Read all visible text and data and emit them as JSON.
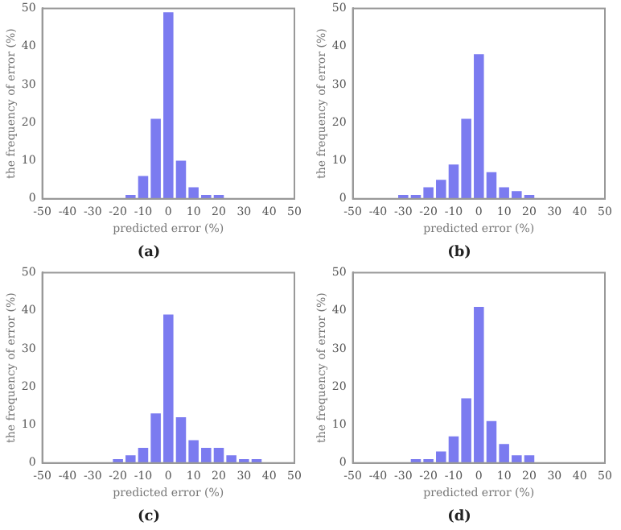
{
  "chart_data": [
    {
      "type": "histogram",
      "title": "(a)",
      "xlabel": "predicted error (%)",
      "ylabel": "the frequency of error (%)",
      "bins": [
        -17.5,
        -12.5,
        -7.5,
        -2.5,
        2.5,
        7.5,
        12.5,
        17.5,
        22.5
      ],
      "values": [
        1,
        6,
        21,
        49,
        10,
        3,
        1,
        1
      ],
      "color": "#7b7bf0",
      "xlim": [
        -50,
        50
      ],
      "xticks": [
        -50,
        -40,
        -30,
        -20,
        -10,
        0,
        10,
        20,
        30,
        40,
        50
      ],
      "ylim": [
        0,
        50
      ],
      "yticks": [
        0,
        10,
        20,
        30,
        40,
        50
      ],
      "grid": false
    },
    {
      "type": "histogram",
      "title": "(b)",
      "xlabel": "predicted error (%)",
      "ylabel": "the frequency of error (%)",
      "bins": [
        -32.5,
        -27.5,
        -22.5,
        -17.5,
        -12.5,
        -7.5,
        -2.5,
        2.5,
        7.5,
        12.5,
        17.5,
        22.5
      ],
      "values": [
        1,
        1,
        3,
        5,
        9,
        21,
        38,
        7,
        3,
        2,
        1
      ],
      "color": "#7b7bf0",
      "xlim": [
        -50,
        50
      ],
      "xticks": [
        -50,
        -40,
        -30,
        -20,
        -10,
        0,
        10,
        20,
        30,
        40,
        50
      ],
      "ylim": [
        0,
        50
      ],
      "yticks": [
        0,
        10,
        20,
        30,
        40,
        50
      ],
      "grid": false
    },
    {
      "type": "histogram",
      "title": "(c)",
      "xlabel": "predicted error (%)",
      "ylabel": "the frequency of error (%)",
      "bins": [
        -22.5,
        -17.5,
        -12.5,
        -7.5,
        -2.5,
        2.5,
        7.5,
        12.5,
        17.5,
        22.5,
        27.5,
        32.5,
        37.5
      ],
      "values": [
        1,
        2,
        4,
        13,
        39,
        12,
        6,
        4,
        4,
        2,
        1,
        1
      ],
      "color": "#7b7bf0",
      "xlim": [
        -50,
        50
      ],
      "xticks": [
        -50,
        -40,
        -30,
        -20,
        -10,
        0,
        10,
        20,
        30,
        40,
        50
      ],
      "ylim": [
        0,
        50
      ],
      "yticks": [
        0,
        10,
        20,
        30,
        40,
        50
      ],
      "grid": false
    },
    {
      "type": "histogram",
      "title": "(d)",
      "xlabel": "predicted error (%)",
      "ylabel": "the frequency of error (%)",
      "bins": [
        -27.5,
        -22.5,
        -17.5,
        -12.5,
        -7.5,
        -2.5,
        2.5,
        7.5,
        12.5,
        17.5,
        22.5
      ],
      "values": [
        1,
        1,
        3,
        7,
        17,
        41,
        11,
        5,
        2,
        2
      ],
      "color": "#7b7bf0",
      "xlim": [
        -50,
        50
      ],
      "xticks": [
        -50,
        -40,
        -30,
        -20,
        -10,
        0,
        10,
        20,
        30,
        40,
        50
      ],
      "ylim": [
        0,
        50
      ],
      "yticks": [
        0,
        10,
        20,
        30,
        40,
        50
      ],
      "grid": false
    }
  ]
}
